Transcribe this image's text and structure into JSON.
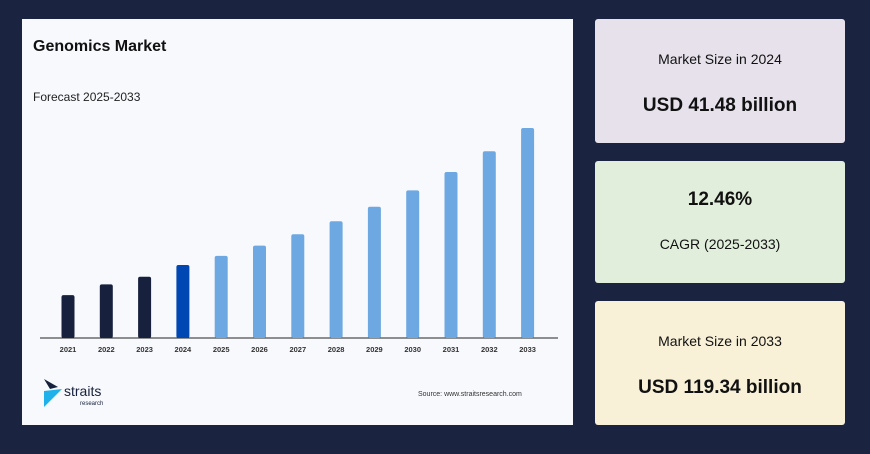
{
  "chart_data": {
    "type": "bar",
    "title": "Genomics Market",
    "subtitle": "Forecast 2025-2033",
    "categories": [
      "2021",
      "2022",
      "2023",
      "2024",
      "2025",
      "2026",
      "2027",
      "2028",
      "2029",
      "2030",
      "2031",
      "2032",
      "2033"
    ],
    "values": [
      24.4,
      30.5,
      34.8,
      41.48,
      46.65,
      52.46,
      58.99,
      66.34,
      74.6,
      83.9,
      94.35,
      106.1,
      119.34
    ],
    "colors": [
      "#17213d",
      "#17213d",
      "#17213d",
      "#0047b3",
      "#6ea8e2",
      "#6ea8e2",
      "#6ea8e2",
      "#6ea8e2",
      "#6ea8e2",
      "#6ea8e2",
      "#6ea8e2",
      "#6ea8e2",
      "#6ea8e2"
    ],
    "grid": false
  },
  "source": "Source: www.straitsresearch.com",
  "logo": {
    "name": "straits",
    "tagline": "research"
  },
  "cards": [
    {
      "label": "Market Size in 2024",
      "value": "USD 41.48 billion",
      "bg": "#e6e1eb"
    },
    {
      "label": "CAGR (2025-2033)",
      "value": "12.46%",
      "bg": "#e2eedc"
    },
    {
      "label": "Market Size in 2033",
      "value": "USD 119.34 billion",
      "bg": "#f8f1d8"
    }
  ]
}
